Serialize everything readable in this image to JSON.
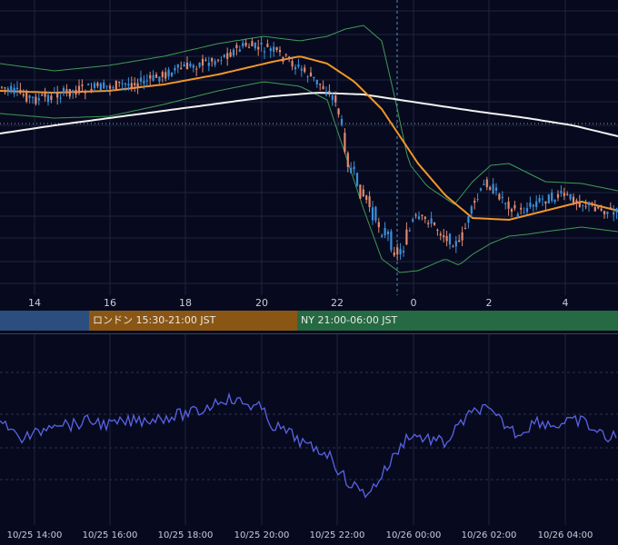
{
  "colors": {
    "background": "#070a1e",
    "grid": "#1e2440",
    "candle_up": "#3b8fd9",
    "candle_down": "#e08a70",
    "bollinger": "#3f9a56",
    "ma_short": "#f0962a",
    "ma_long": "#f2f2f2",
    "oscillator": "#5a63e6",
    "session_tokyo": "#2b4e7e",
    "session_london": "#8a5614",
    "session_ny": "#256a42"
  },
  "time_axis_top": [
    "14",
    "16",
    "18",
    "20",
    "22",
    "0",
    "2",
    "4"
  ],
  "sessions": [
    {
      "name": "tokyo",
      "label": ""
    },
    {
      "name": "london",
      "label": "ロンドン 15:30-21:00 JST"
    },
    {
      "name": "ny",
      "label": "NY 21:00-06:00 JST"
    }
  ],
  "time_axis_bottom": [
    "10/25 14:00",
    "10/25 16:00",
    "10/25 18:00",
    "10/25 20:00",
    "10/25 22:00",
    "10/26 00:00",
    "10/26 02:00",
    "10/26 04:00"
  ]
}
